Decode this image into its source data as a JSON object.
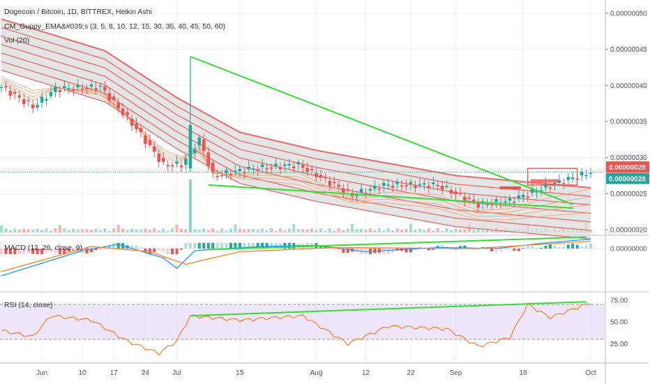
{
  "colors": {
    "up": "#26a69a",
    "down": "#ef5350",
    "ribbon_red": "#e06666",
    "ribbon_fill": "#dcdcdc",
    "ribbon_orange": "#f0a070",
    "trendline": "#33dd33",
    "macd_line": "#2196f3",
    "signal_line": "#ff7f27",
    "rsi_line": "#ff7f27",
    "rsi_band": "#e6d6f8",
    "tag_red": "#ef5350",
    "tag_green": "#26a69a"
  },
  "chart_data": [
    {
      "type": "candlestick",
      "title": "Dogecoin / Bitcoin, 1D, BITTREX, Heikin Ashi",
      "indicators": [
        "CM_Guppy_EMA&#039;s (3, 5, 8, 10, 12, 15, 30, 35, 40, 45, 50, 60)",
        "Vol (20)"
      ],
      "y_ticks": [
        "0.00000050",
        "0.00000045",
        "0.00000040",
        "0.00000035",
        "0.00000030",
        "0.00000025",
        "0.00000020"
      ],
      "last_price_labels": [
        "0.00000028",
        "0.00000028"
      ],
      "x_ticks": [
        "Jun",
        "10",
        "17",
        "24",
        "Jul",
        "15",
        "Aug",
        "12",
        "22",
        "Sep",
        "16",
        "Oct"
      ],
      "date_range": [
        "2019-05-23",
        "2019-10-01"
      ],
      "close_path": [
        {
          "date": "2019-05-23",
          "value": 3.98e-07
        },
        {
          "date": "2019-05-30",
          "value": 3.7e-07
        },
        {
          "date": "2019-06-04",
          "value": 3.95e-07
        },
        {
          "date": "2019-06-14",
          "value": 3.98e-07
        },
        {
          "date": "2019-06-22",
          "value": 3.4e-07
        },
        {
          "date": "2019-06-28",
          "value": 2.9e-07
        },
        {
          "date": "2019-07-02",
          "value": 2.9e-07
        },
        {
          "date": "2019-07-06",
          "value": 3.25e-07
        },
        {
          "date": "2019-07-09",
          "value": 2.75e-07
        },
        {
          "date": "2019-07-18",
          "value": 2.85e-07
        },
        {
          "date": "2019-07-28",
          "value": 2.9e-07
        },
        {
          "date": "2019-08-09",
          "value": 2.48e-07
        },
        {
          "date": "2019-08-16",
          "value": 2.62e-07
        },
        {
          "date": "2019-08-28",
          "value": 2.62e-07
        },
        {
          "date": "2019-09-06",
          "value": 2.35e-07
        },
        {
          "date": "2019-09-13",
          "value": 2.4e-07
        },
        {
          "date": "2019-09-22",
          "value": 2.62e-07
        },
        {
          "date": "2019-10-01",
          "value": 2.8e-07
        }
      ],
      "pump_spike": {
        "date": "2019-07-04",
        "high": 4.4e-07,
        "close": 3.45e-07
      },
      "ema_ribbon_upper": [
        {
          "date": "2019-05-23",
          "value": 4.92e-07
        },
        {
          "date": "2019-06-15",
          "value": 4.48e-07
        },
        {
          "date": "2019-07-01",
          "value": 3.83e-07
        },
        {
          "date": "2019-07-15",
          "value": 3.35e-07
        },
        {
          "date": "2019-08-01",
          "value": 3.1e-07
        },
        {
          "date": "2019-09-01",
          "value": 2.75e-07
        },
        {
          "date": "2019-10-01",
          "value": 2.58e-07
        }
      ],
      "trendlines": [
        {
          "from": {
            "date": "2019-07-04",
            "value": 4.4e-07
          },
          "to": {
            "date": "2019-09-27",
            "value": 2.35e-07
          }
        },
        {
          "from": {
            "date": "2019-07-08",
            "value": 2.62e-07
          },
          "to": {
            "date": "2019-09-27",
            "value": 2.3e-07
          }
        }
      ]
    },
    {
      "type": "line",
      "title": "MACD (12, 26, close, 9)",
      "y_ticks": [
        "0.00000000"
      ],
      "series": [
        {
          "name": "MACD",
          "points": [
            {
              "date": "2019-05-23",
              "value": -2.6e-08
            },
            {
              "date": "2019-06-10",
              "value": -2e-09
            },
            {
              "date": "2019-06-18",
              "value": 4e-09
            },
            {
              "date": "2019-06-28",
              "value": -9e-09
            },
            {
              "date": "2019-07-01",
              "value": -1.9e-08
            },
            {
              "date": "2019-07-05",
              "value": -2e-09
            },
            {
              "date": "2019-07-20",
              "value": 2e-09
            },
            {
              "date": "2019-08-01",
              "value": 3e-09
            },
            {
              "date": "2019-08-12",
              "value": -3e-09
            },
            {
              "date": "2019-08-28",
              "value": 1e-09
            },
            {
              "date": "2019-09-10",
              "value": 0.0
            },
            {
              "date": "2019-09-20",
              "value": 5e-09
            },
            {
              "date": "2019-10-01",
              "value": 9e-09
            }
          ]
        },
        {
          "name": "Signal",
          "points": [
            {
              "date": "2019-05-23",
              "value": -2.2e-08
            },
            {
              "date": "2019-06-12",
              "value": 2e-09
            },
            {
              "date": "2019-06-25",
              "value": -3e-09
            },
            {
              "date": "2019-07-03",
              "value": -1.5e-08
            },
            {
              "date": "2019-07-15",
              "value": -3e-09
            },
            {
              "date": "2019-08-05",
              "value": 1e-09
            },
            {
              "date": "2019-09-05",
              "value": 0.0
            },
            {
              "date": "2019-10-01",
              "value": 7e-09
            }
          ]
        }
      ],
      "trendlines": [
        {
          "from": {
            "date": "2019-07-08",
            "value": -1e-09
          },
          "to": {
            "date": "2019-09-30",
            "value": 1.1e-08
          }
        }
      ]
    },
    {
      "type": "line",
      "title": "RSI (14, close)",
      "y_ticks": [
        "75.00",
        "50.00",
        "25.00"
      ],
      "band": [
        30,
        70
      ],
      "series": [
        {
          "name": "RSI",
          "points": [
            {
              "date": "2019-05-23",
              "value": 40
            },
            {
              "date": "2019-05-30",
              "value": 33
            },
            {
              "date": "2019-06-03",
              "value": 57
            },
            {
              "date": "2019-06-12",
              "value": 52
            },
            {
              "date": "2019-06-20",
              "value": 28
            },
            {
              "date": "2019-06-27",
              "value": 14
            },
            {
              "date": "2019-07-01",
              "value": 28
            },
            {
              "date": "2019-07-04",
              "value": 57
            },
            {
              "date": "2019-07-15",
              "value": 52
            },
            {
              "date": "2019-07-29",
              "value": 57
            },
            {
              "date": "2019-08-08",
              "value": 25
            },
            {
              "date": "2019-08-17",
              "value": 45
            },
            {
              "date": "2019-08-30",
              "value": 42
            },
            {
              "date": "2019-09-06",
              "value": 22
            },
            {
              "date": "2019-09-13",
              "value": 32
            },
            {
              "date": "2019-09-17",
              "value": 70
            },
            {
              "date": "2019-09-22",
              "value": 55
            },
            {
              "date": "2019-10-01",
              "value": 72
            }
          ]
        }
      ],
      "trendlines": [
        {
          "from": {
            "date": "2019-07-04",
            "value": 57
          },
          "to": {
            "date": "2019-09-30",
            "value": 73
          }
        }
      ]
    }
  ]
}
